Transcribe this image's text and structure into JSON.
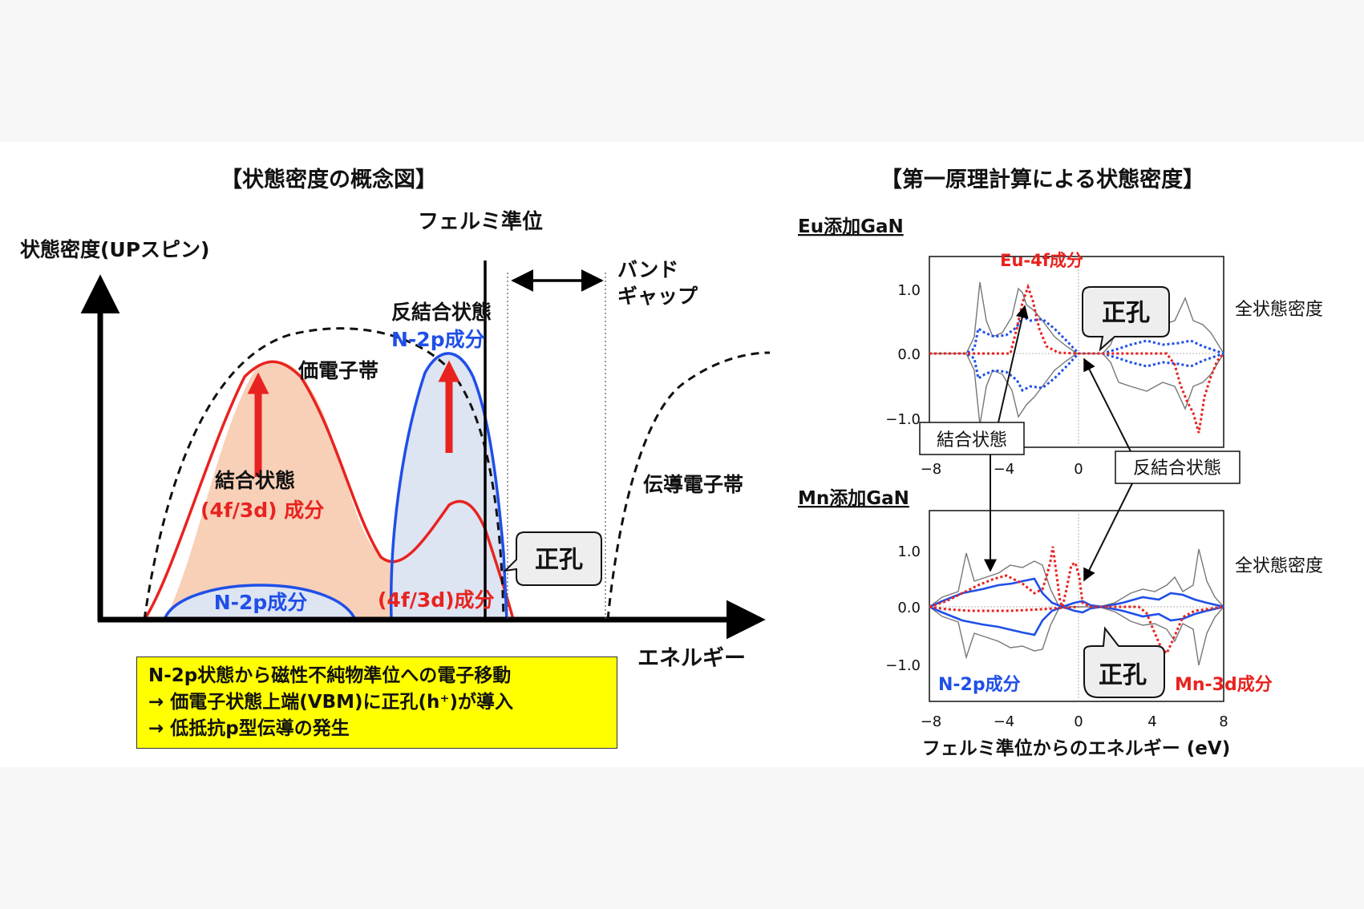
{
  "left": {
    "title": "【状態密度の概念図】",
    "fermi_label": "フェルミ準位",
    "y_axis_label": "状態密度(UPスピン)",
    "x_axis_label": "エネルギー",
    "band_gap_line1": "バンド",
    "band_gap_line2": "ギャップ",
    "antibonding_label": "反結合状態",
    "n2p_antibonding_label": "N-2p成分",
    "valence_band_label": "価電子帯",
    "bonding_label": "結合状態",
    "bonding_component": "(4f/3d) 成分",
    "n2p_label": "N-2p成分",
    "fd_label": "(4f/3d)成分",
    "hole_label": "正孔",
    "conduction_band_label": "伝導電子帯"
  },
  "note": {
    "line1": "N-2p状態から磁性不純物準位への電子移動",
    "line2": "→ 価電子状態上端(VBM)に正孔(h⁺)が導入",
    "line3": "→ 低抵抗p型伝導の発生"
  },
  "right": {
    "title": "【第一原理計算による状態密度】",
    "eu_panel_title": "Eu添加GaN",
    "eu_component": "Eu-4f成分",
    "total_dos_1": "全状態密度",
    "hole_label_1": "正孔",
    "bonding_box": "結合状態",
    "antibonding_box": "反結合状態",
    "mn_panel_title": "Mn添加GaN",
    "total_dos_2": "全状態密度",
    "n2p_label": "N-2p成分",
    "hole_label_2": "正孔",
    "mn_component": "Mn-3d成分",
    "x_axis_label": "フェルミ準位からのエネルギー (eV)",
    "y_ticks": [
      "1.0",
      "0.0",
      "−1.0"
    ],
    "x_ticks_top": [
      "−8",
      "−4",
      "0"
    ],
    "x_ticks_bottom": [
      "−8",
      "−4",
      "0",
      "4",
      "8"
    ]
  },
  "colors": {
    "red": "#e8231f",
    "blue": "#1f4fe8",
    "orange_fill": "#f8d0b8",
    "blue_fill": "#dde4f2",
    "note_bg": "#ffff00"
  }
}
